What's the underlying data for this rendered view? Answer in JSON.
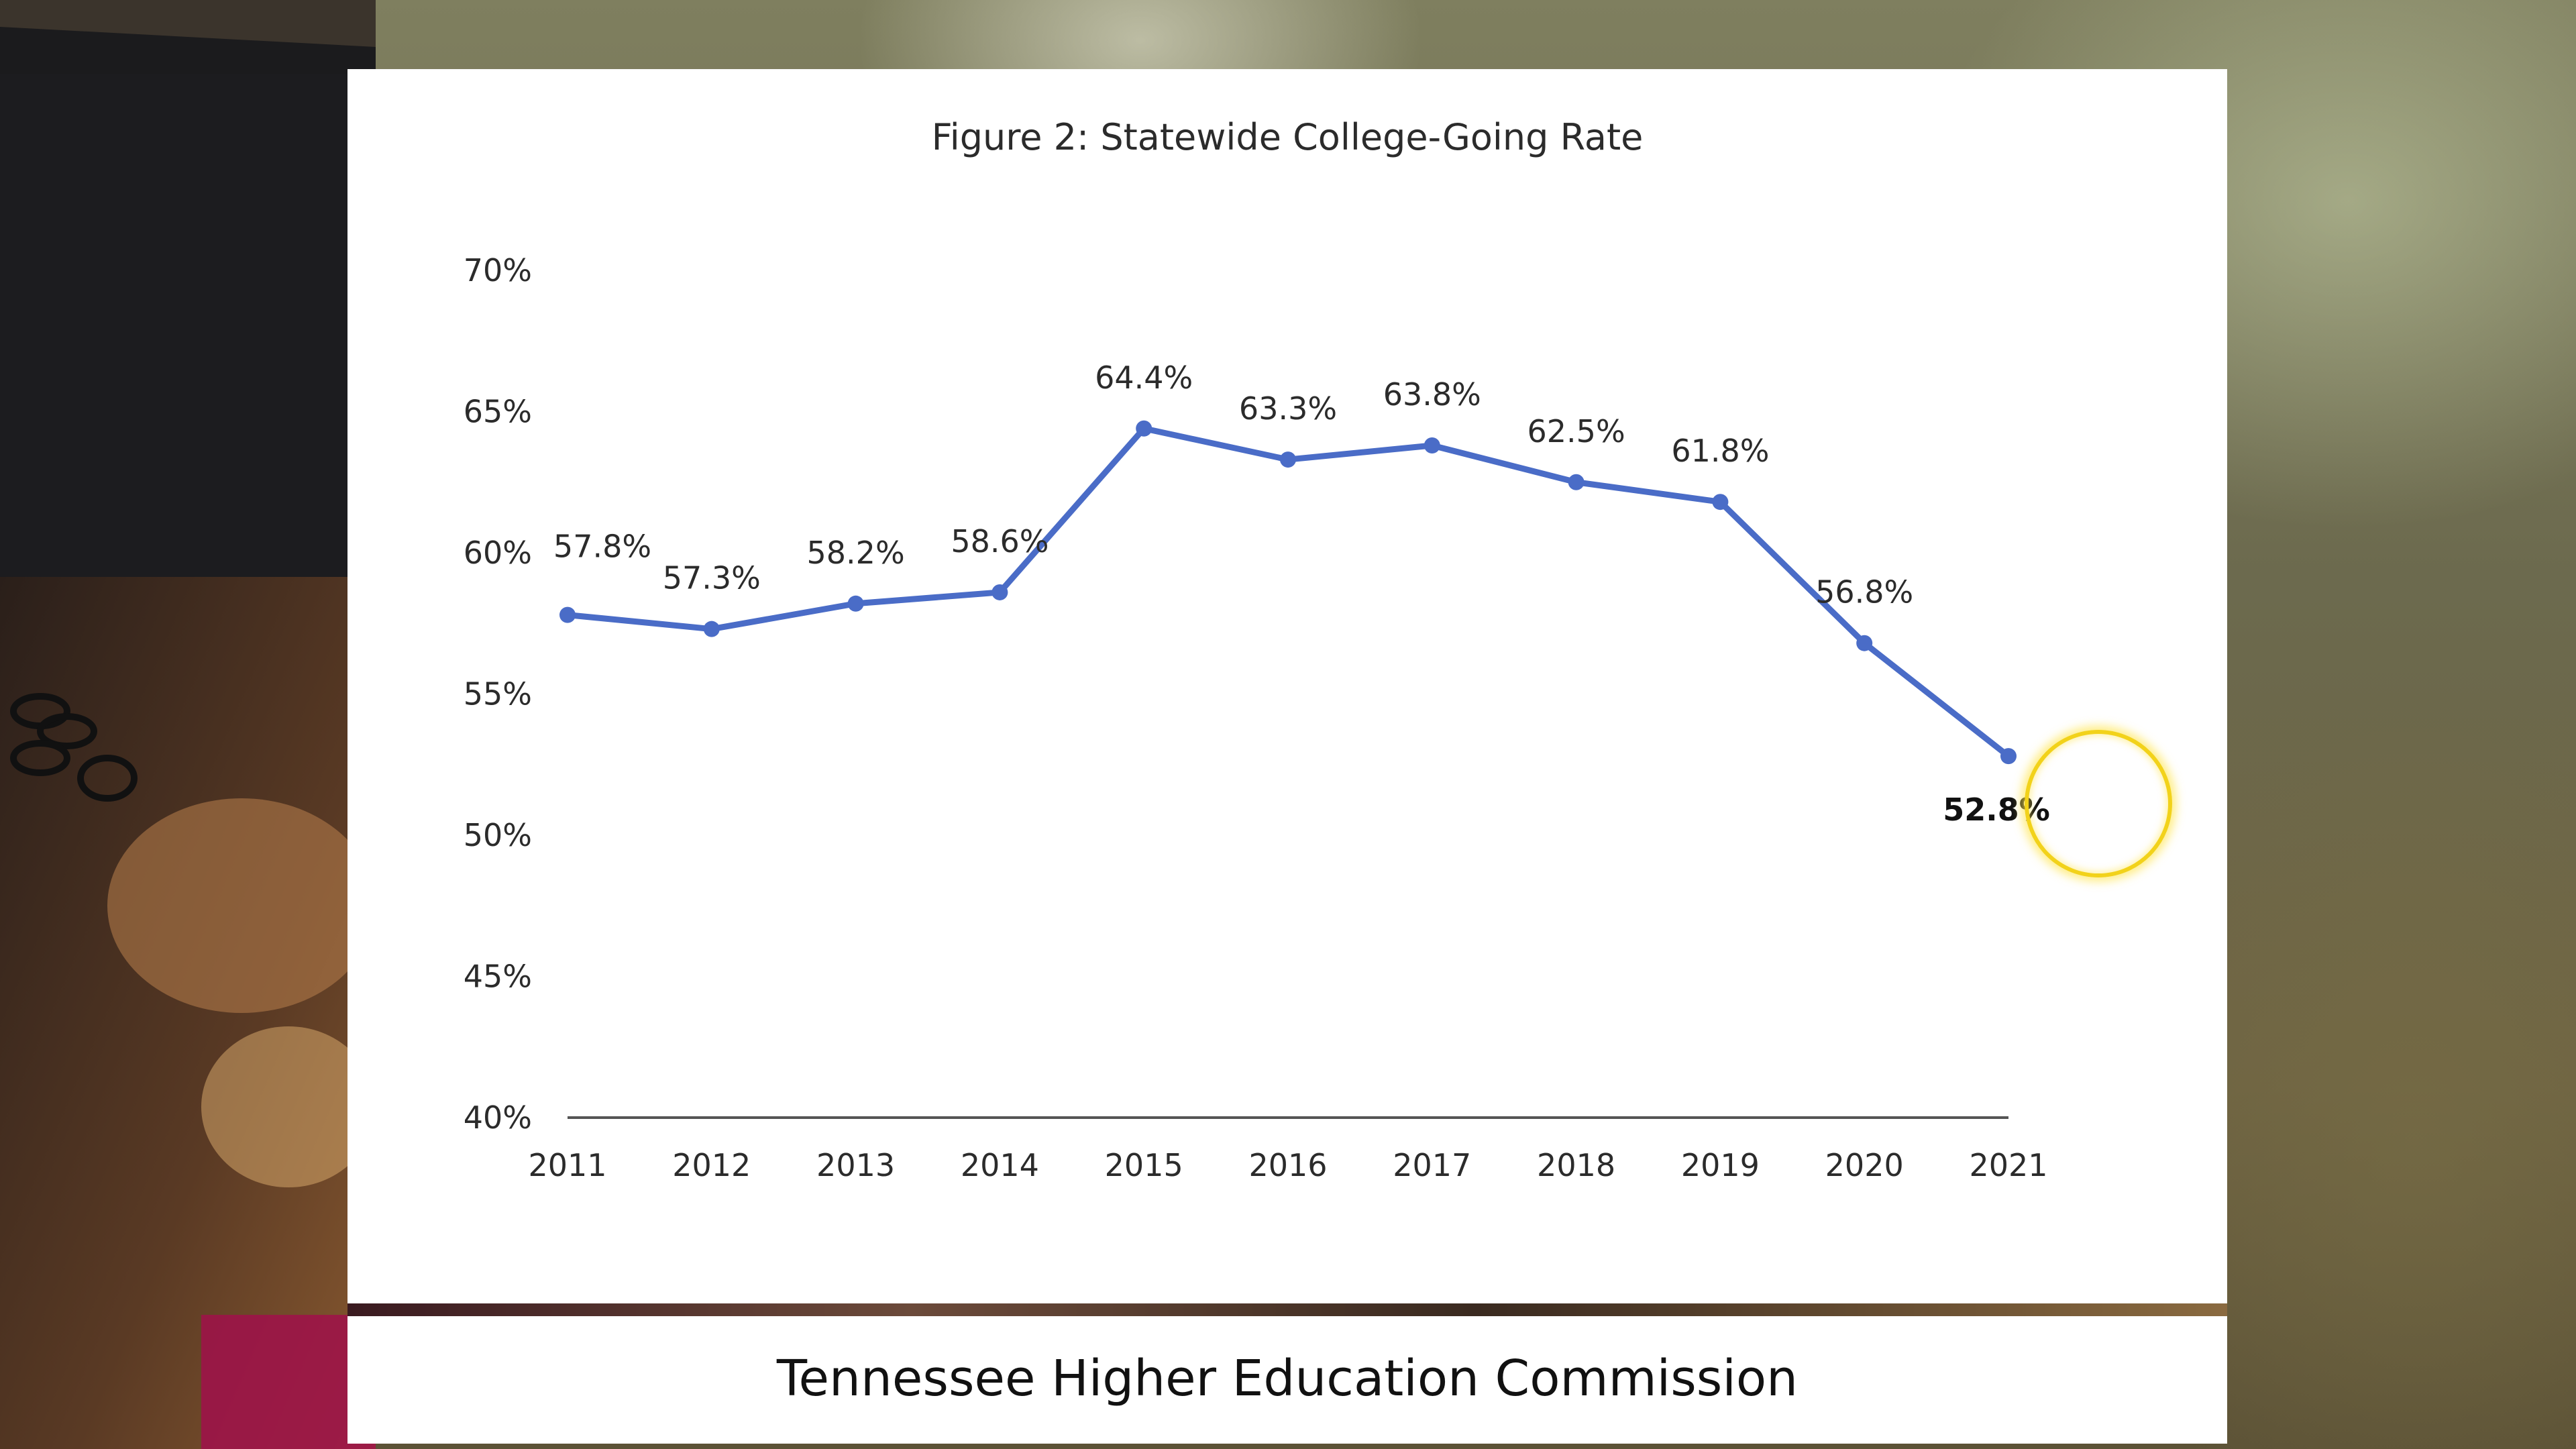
{
  "caption": "Tennessee Higher Education Commission",
  "colors": {
    "line": "#4a6cc7",
    "axis": "#555555",
    "cursor_ring": "#f2d21a"
  },
  "chart_data": {
    "type": "line",
    "title": "Figure 2: Statewide College-Going Rate",
    "categories": [
      "2011",
      "2012",
      "2013",
      "2014",
      "2015",
      "2016",
      "2017",
      "2018",
      "2019",
      "2020",
      "2021"
    ],
    "series": [
      {
        "name": "College-Going Rate",
        "values": [
          57.8,
          57.3,
          58.2,
          58.6,
          64.4,
          63.3,
          63.8,
          62.5,
          61.8,
          56.8,
          52.8
        ],
        "labels": [
          "57.8%",
          "57.3%",
          "58.2%",
          "58.6%",
          "64.4%",
          "63.3%",
          "63.8%",
          "62.5%",
          "61.8%",
          "56.8%",
          "52.8%"
        ]
      }
    ],
    "ylim": [
      40,
      70
    ],
    "yticks": [
      40,
      45,
      50,
      55,
      60,
      65,
      70
    ],
    "ytick_labels": [
      "40%",
      "45%",
      "50%",
      "55%",
      "60%",
      "65%",
      "70%"
    ],
    "xlabel": "",
    "ylabel": "",
    "grid": false,
    "legend": "none",
    "emphasized_label_index": 10
  }
}
